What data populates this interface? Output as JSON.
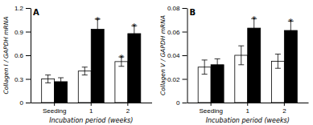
{
  "chart_data": [
    {
      "type": "bar",
      "title": "A",
      "xlabel": "Incubation period (weeks)",
      "ylabel": "Collagen I / GAPDH mRNA",
      "categories": [
        "Seeding",
        "1",
        "2"
      ],
      "series": [
        {
          "color": "white",
          "values": [
            0.3,
            0.4,
            0.52
          ],
          "errors": [
            0.05,
            0.05,
            0.06
          ]
        },
        {
          "color": "black",
          "values": [
            0.265,
            0.93,
            0.875
          ],
          "errors": [
            0.05,
            0.13,
            0.1
          ]
        }
      ],
      "annotations": [
        {
          "text": "*",
          "series": 1,
          "category": "1"
        },
        {
          "text": "*",
          "series": 1,
          "category": "2"
        },
        {
          "text": "*",
          "series": 0,
          "category": "2"
        }
      ],
      "ylim": [
        0,
        1.2
      ],
      "yticks": [
        0,
        0.3,
        0.6,
        0.9,
        1.2
      ]
    },
    {
      "type": "bar",
      "title": "B",
      "xlabel": "Incubation period (weeks)",
      "ylabel": "Collagen V / GAPDH mRNA",
      "categories": [
        "Seeding",
        "1",
        "2"
      ],
      "series": [
        {
          "color": "white",
          "values": [
            0.03,
            0.04,
            0.035
          ],
          "errors": [
            0.006,
            0.008,
            0.006
          ]
        },
        {
          "color": "black",
          "values": [
            0.032,
            0.063,
            0.061
          ],
          "errors": [
            0.005,
            0.008,
            0.008
          ]
        }
      ],
      "annotations": [
        {
          "text": "*",
          "series": 1,
          "category": "1"
        },
        {
          "text": "*",
          "series": 1,
          "category": "2"
        }
      ],
      "ylim": [
        0,
        0.08
      ],
      "yticks": [
        0,
        0.02,
        0.04,
        0.06,
        0.08
      ]
    }
  ]
}
